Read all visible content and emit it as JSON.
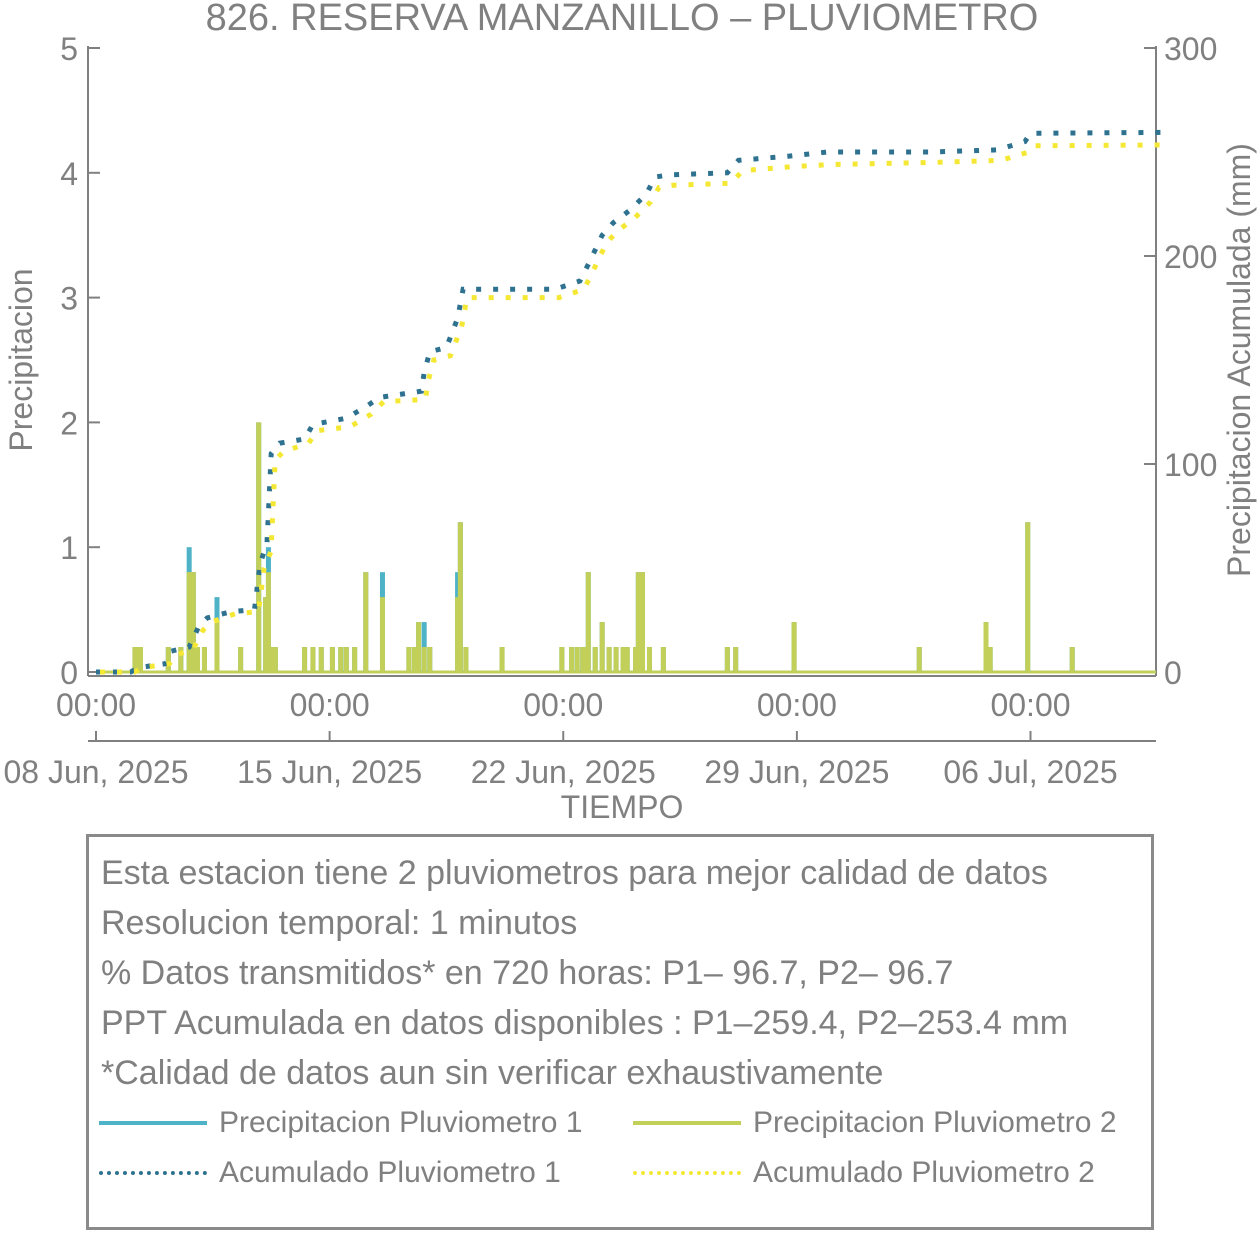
{
  "chart_data": {
    "type": "line",
    "title": "826. RESERVA MANZANILLO – PLUVIOMETRO",
    "xlabel": "TIEMPO",
    "ylabel_left": "Precipitacion",
    "ylabel_right": "Precipitacion Acumulada (mm)",
    "ylim_left": [
      0,
      5
    ],
    "ylim_right": [
      0,
      300
    ],
    "yticks_left": [
      "0",
      "1",
      "2",
      "3",
      "4",
      "5"
    ],
    "yticks_right": [
      "0",
      "100",
      "200",
      "300"
    ],
    "xlim_days": [
      "2025-06-08",
      "2025-07-10"
    ],
    "xticks": [
      {
        "date": "2025-06-08",
        "time": "00:00",
        "label": "08 Jun, 2025"
      },
      {
        "date": "2025-06-15",
        "time": "00:00",
        "label": "15 Jun, 2025"
      },
      {
        "date": "2025-06-22",
        "time": "00:00",
        "label": "22 Jun, 2025"
      },
      {
        "date": "2025-06-29",
        "time": "00:00",
        "label": "29 Jun, 2025"
      },
      {
        "date": "2025-07-06",
        "time": "00:00",
        "label": "06 Jul, 2025"
      }
    ],
    "colors": {
      "p1": "#4fb3c8",
      "p2": "#c2cf58",
      "acc1": "#2e7290",
      "acc2": "#f5e834",
      "axis": "#808080"
    },
    "series": [
      {
        "name": "Precipitacion Pluviometro 1",
        "axis": "left",
        "style": "bars",
        "points": [
          [
            "2025-06-09T04:00",
            0.2
          ],
          [
            "2025-06-09T05:00",
            0.2
          ],
          [
            "2025-06-09T08:00",
            0.2
          ],
          [
            "2025-06-10T04:00",
            0.2
          ],
          [
            "2025-06-10T13:00",
            0.2
          ],
          [
            "2025-06-10T19:00",
            1.0
          ],
          [
            "2025-06-10T20:00",
            0.8
          ],
          [
            "2025-06-10T22:00",
            0.8
          ],
          [
            "2025-06-11T01:00",
            0.2
          ],
          [
            "2025-06-11T06:00",
            0.2
          ],
          [
            "2025-06-11T15:00",
            0.6
          ],
          [
            "2025-06-12T08:00",
            0.2
          ],
          [
            "2025-06-12T21:00",
            2.0
          ],
          [
            "2025-06-13T02:00",
            0.6
          ],
          [
            "2025-06-13T04:00",
            1.0
          ],
          [
            "2025-06-13T06:00",
            0.2
          ],
          [
            "2025-06-13T09:00",
            0.2
          ],
          [
            "2025-06-14T06:00",
            0.2
          ],
          [
            "2025-06-14T12:00",
            0.2
          ],
          [
            "2025-06-14T18:00",
            0.2
          ],
          [
            "2025-06-15T02:00",
            0.2
          ],
          [
            "2025-06-15T08:00",
            0.2
          ],
          [
            "2025-06-15T12:00",
            0.2
          ],
          [
            "2025-06-15T18:00",
            0.2
          ],
          [
            "2025-06-16T02:00",
            0.8
          ],
          [
            "2025-06-16T14:00",
            0.8
          ],
          [
            "2025-06-17T09:00",
            0.2
          ],
          [
            "2025-06-17T13:00",
            0.2
          ],
          [
            "2025-06-17T16:00",
            0.4
          ],
          [
            "2025-06-17T20:00",
            0.4
          ],
          [
            "2025-06-18T00:00",
            0.2
          ],
          [
            "2025-06-18T20:00",
            0.8
          ],
          [
            "2025-06-18T22:00",
            1.2
          ],
          [
            "2025-06-19T02:00",
            0.2
          ],
          [
            "2025-06-20T04:00",
            0.2
          ],
          [
            "2025-06-21T23:00",
            0.2
          ],
          [
            "2025-06-22T06:00",
            0.2
          ],
          [
            "2025-06-22T10:00",
            0.2
          ],
          [
            "2025-06-22T14:00",
            0.2
          ],
          [
            "2025-06-22T16:00",
            0.2
          ],
          [
            "2025-06-22T18:00",
            0.8
          ],
          [
            "2025-06-22T23:00",
            0.2
          ],
          [
            "2025-06-23T04:00",
            0.4
          ],
          [
            "2025-06-23T09:00",
            0.2
          ],
          [
            "2025-06-23T14:00",
            0.2
          ],
          [
            "2025-06-23T19:00",
            0.2
          ],
          [
            "2025-06-23T22:00",
            0.2
          ],
          [
            "2025-06-24T04:00",
            0.2
          ],
          [
            "2025-06-24T06:00",
            0.8
          ],
          [
            "2025-06-24T09:00",
            0.8
          ],
          [
            "2025-06-24T14:00",
            0.2
          ],
          [
            "2025-06-25T00:00",
            0.2
          ],
          [
            "2025-06-26T22:00",
            0.2
          ],
          [
            "2025-06-27T04:00",
            0.2
          ],
          [
            "2025-06-28T22:00",
            0.4
          ],
          [
            "2025-07-02T16:00",
            0.2
          ],
          [
            "2025-07-04T16:00",
            0.4
          ],
          [
            "2025-07-04T19:00",
            0.2
          ],
          [
            "2025-07-05T22:00",
            1.2
          ],
          [
            "2025-07-07T06:00",
            0.2
          ]
        ]
      },
      {
        "name": "Precipitacion Pluviometro 2",
        "axis": "left",
        "style": "bars",
        "points": [
          [
            "2025-06-09T04:00",
            0.2
          ],
          [
            "2025-06-09T05:00",
            0.2
          ],
          [
            "2025-06-09T08:00",
            0.2
          ],
          [
            "2025-06-10T04:00",
            0.2
          ],
          [
            "2025-06-10T13:00",
            0.2
          ],
          [
            "2025-06-10T19:00",
            0.8
          ],
          [
            "2025-06-10T20:00",
            0.8
          ],
          [
            "2025-06-10T22:00",
            0.8
          ],
          [
            "2025-06-11T01:00",
            0.2
          ],
          [
            "2025-06-11T06:00",
            0.2
          ],
          [
            "2025-06-11T15:00",
            0.4
          ],
          [
            "2025-06-12T08:00",
            0.2
          ],
          [
            "2025-06-12T21:00",
            2.0
          ],
          [
            "2025-06-13T02:00",
            0.6
          ],
          [
            "2025-06-13T04:00",
            0.8
          ],
          [
            "2025-06-13T06:00",
            0.2
          ],
          [
            "2025-06-13T09:00",
            0.2
          ],
          [
            "2025-06-14T06:00",
            0.2
          ],
          [
            "2025-06-14T12:00",
            0.2
          ],
          [
            "2025-06-14T18:00",
            0.2
          ],
          [
            "2025-06-15T02:00",
            0.2
          ],
          [
            "2025-06-15T08:00",
            0.2
          ],
          [
            "2025-06-15T12:00",
            0.2
          ],
          [
            "2025-06-15T18:00",
            0.2
          ],
          [
            "2025-06-16T02:00",
            0.8
          ],
          [
            "2025-06-16T14:00",
            0.6
          ],
          [
            "2025-06-17T09:00",
            0.2
          ],
          [
            "2025-06-17T13:00",
            0.2
          ],
          [
            "2025-06-17T16:00",
            0.4
          ],
          [
            "2025-06-17T20:00",
            0.2
          ],
          [
            "2025-06-18T00:00",
            0.2
          ],
          [
            "2025-06-18T20:00",
            0.6
          ],
          [
            "2025-06-18T22:00",
            1.2
          ],
          [
            "2025-06-19T02:00",
            0.2
          ],
          [
            "2025-06-20T04:00",
            0.2
          ],
          [
            "2025-06-21T23:00",
            0.2
          ],
          [
            "2025-06-22T06:00",
            0.2
          ],
          [
            "2025-06-22T10:00",
            0.2
          ],
          [
            "2025-06-22T14:00",
            0.2
          ],
          [
            "2025-06-22T16:00",
            0.2
          ],
          [
            "2025-06-22T18:00",
            0.8
          ],
          [
            "2025-06-22T23:00",
            0.2
          ],
          [
            "2025-06-23T04:00",
            0.4
          ],
          [
            "2025-06-23T09:00",
            0.2
          ],
          [
            "2025-06-23T14:00",
            0.2
          ],
          [
            "2025-06-23T19:00",
            0.2
          ],
          [
            "2025-06-23T22:00",
            0.2
          ],
          [
            "2025-06-24T04:00",
            0.2
          ],
          [
            "2025-06-24T06:00",
            0.8
          ],
          [
            "2025-06-24T09:00",
            0.8
          ],
          [
            "2025-06-24T14:00",
            0.2
          ],
          [
            "2025-06-25T00:00",
            0.2
          ],
          [
            "2025-06-26T22:00",
            0.2
          ],
          [
            "2025-06-27T04:00",
            0.2
          ],
          [
            "2025-06-28T22:00",
            0.4
          ],
          [
            "2025-07-02T16:00",
            0.2
          ],
          [
            "2025-07-04T16:00",
            0.4
          ],
          [
            "2025-07-04T19:00",
            0.2
          ],
          [
            "2025-07-05T22:00",
            1.2
          ],
          [
            "2025-07-07T06:00",
            0.2
          ]
        ]
      },
      {
        "name": "Acumulado Pluviometro 1",
        "axis": "right",
        "style": "dotted",
        "points": [
          [
            "2025-06-08T00:00",
            0
          ],
          [
            "2025-06-09T01:00",
            0
          ],
          [
            "2025-06-09T06:00",
            2
          ],
          [
            "2025-06-10T02:00",
            4
          ],
          [
            "2025-06-10T06:00",
            10
          ],
          [
            "2025-06-10T19:00",
            12
          ],
          [
            "2025-06-11T02:00",
            22
          ],
          [
            "2025-06-11T08:00",
            26
          ],
          [
            "2025-06-12T01:00",
            29
          ],
          [
            "2025-06-12T18:00",
            30
          ],
          [
            "2025-06-12T22:00",
            52
          ],
          [
            "2025-06-13T03:00",
            62
          ],
          [
            "2025-06-13T06:00",
            105
          ],
          [
            "2025-06-13T12:00",
            110
          ],
          [
            "2025-06-14T06:00",
            112
          ],
          [
            "2025-06-14T12:00",
            119
          ],
          [
            "2025-06-15T12:00",
            122
          ],
          [
            "2025-06-16T03:00",
            128
          ],
          [
            "2025-06-16T12:00",
            132
          ],
          [
            "2025-06-17T18:00",
            135
          ],
          [
            "2025-06-17T20:00",
            144
          ],
          [
            "2025-06-18T00:00",
            154
          ],
          [
            "2025-06-18T12:00",
            156
          ],
          [
            "2025-06-18T20:00",
            170
          ],
          [
            "2025-06-19T00:00",
            184
          ],
          [
            "2025-06-21T18:00",
            184
          ],
          [
            "2025-06-22T12:00",
            188
          ],
          [
            "2025-06-22T18:00",
            196
          ],
          [
            "2025-06-23T04:00",
            210
          ],
          [
            "2025-06-23T12:00",
            216
          ],
          [
            "2025-06-24T00:00",
            222
          ],
          [
            "2025-06-24T12:00",
            230
          ],
          [
            "2025-06-24T18:00",
            238
          ],
          [
            "2025-06-25T04:00",
            239
          ],
          [
            "2025-06-26T22:00",
            240
          ],
          [
            "2025-06-27T06:00",
            246
          ],
          [
            "2025-06-28T18:00",
            248
          ],
          [
            "2025-06-29T22:00",
            250
          ],
          [
            "2025-07-03T00:00",
            250
          ],
          [
            "2025-07-05T00:00",
            251
          ],
          [
            "2025-07-05T20:00",
            255
          ],
          [
            "2025-07-06T00:00",
            259
          ],
          [
            "2025-07-10T00:00",
            259.4
          ]
        ]
      },
      {
        "name": "Acumulado Pluviometro 2",
        "axis": "right",
        "style": "dotted",
        "points": [
          [
            "2025-06-08T00:00",
            0
          ],
          [
            "2025-06-09T01:00",
            0
          ],
          [
            "2025-06-09T06:00",
            2
          ],
          [
            "2025-06-10T02:00",
            4
          ],
          [
            "2025-06-10T06:00",
            8
          ],
          [
            "2025-06-10T19:00",
            11
          ],
          [
            "2025-06-11T02:00",
            20
          ],
          [
            "2025-06-11T08:00",
            24
          ],
          [
            "2025-06-12T01:00",
            28
          ],
          [
            "2025-06-12T18:00",
            29
          ],
          [
            "2025-06-12T22:00",
            50
          ],
          [
            "2025-06-13T03:00",
            58
          ],
          [
            "2025-06-13T06:00",
            102
          ],
          [
            "2025-06-13T12:00",
            106
          ],
          [
            "2025-06-14T06:00",
            110
          ],
          [
            "2025-06-14T12:00",
            116
          ],
          [
            "2025-06-15T12:00",
            118
          ],
          [
            "2025-06-16T03:00",
            124
          ],
          [
            "2025-06-16T12:00",
            130
          ],
          [
            "2025-06-17T18:00",
            131
          ],
          [
            "2025-06-17T20:00",
            140
          ],
          [
            "2025-06-18T00:00",
            150
          ],
          [
            "2025-06-18T12:00",
            152
          ],
          [
            "2025-06-18T20:00",
            166
          ],
          [
            "2025-06-19T00:00",
            180
          ],
          [
            "2025-06-21T18:00",
            180
          ],
          [
            "2025-06-22T12:00",
            184
          ],
          [
            "2025-06-22T18:00",
            192
          ],
          [
            "2025-06-23T04:00",
            206
          ],
          [
            "2025-06-23T12:00",
            212
          ],
          [
            "2025-06-24T00:00",
            218
          ],
          [
            "2025-06-24T12:00",
            226
          ],
          [
            "2025-06-24T18:00",
            233
          ],
          [
            "2025-06-25T04:00",
            234
          ],
          [
            "2025-06-26T22:00",
            235
          ],
          [
            "2025-06-27T06:00",
            241
          ],
          [
            "2025-06-28T18:00",
            243
          ],
          [
            "2025-06-29T22:00",
            244
          ],
          [
            "2025-07-03T00:00",
            245
          ],
          [
            "2025-07-05T00:00",
            246
          ],
          [
            "2025-07-05T20:00",
            250
          ],
          [
            "2025-07-06T00:00",
            253
          ],
          [
            "2025-07-10T00:00",
            253.4
          ]
        ]
      }
    ],
    "legend_position": "bottom"
  },
  "info": {
    "lines": [
      "Esta estacion tiene 2 pluviometros para mejor calidad de datos",
      "Resolucion temporal: 1 minutos",
      "% Datos transmitidos* en 720 horas: P1– 96.7, P2– 96.7",
      "PPT Acumulada en datos disponibles : P1–259.4, P2–253.4 mm",
      "*Calidad de datos aun sin verificar exhaustivamente"
    ]
  },
  "legend": {
    "items": [
      {
        "label": "Precipitacion Pluviometro 1",
        "color": "#4fb3c8",
        "style": "solid"
      },
      {
        "label": "Precipitacion Pluviometro 2",
        "color": "#c2cf58",
        "style": "solid"
      },
      {
        "label": "Acumulado Pluviometro 1",
        "color": "#2e7290",
        "style": "dotted"
      },
      {
        "label": "Acumulado Pluviometro 2",
        "color": "#f5e834",
        "style": "dotted"
      }
    ]
  }
}
